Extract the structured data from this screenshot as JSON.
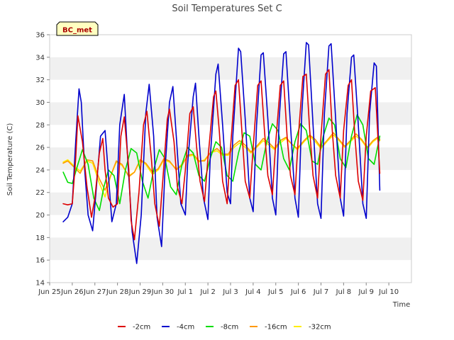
{
  "chart_data": {
    "type": "line",
    "title": "Soil Temperatures Set C",
    "xlabel": "Time",
    "ylabel": "Soil Temperature (C)",
    "station_label": "BC_met",
    "xlim": [
      0,
      16
    ],
    "ylim": [
      14,
      36
    ],
    "yticks": [
      14,
      16,
      18,
      20,
      22,
      24,
      26,
      28,
      30,
      32,
      34,
      36
    ],
    "xticks": [
      {
        "x": 0,
        "label": "Jun 25"
      },
      {
        "x": 1,
        "label": "Jun 26"
      },
      {
        "x": 2,
        "label": "Jun 27"
      },
      {
        "x": 3,
        "label": "Jun 28"
      },
      {
        "x": 4,
        "label": "Jun 29"
      },
      {
        "x": 5,
        "label": "Jun 30"
      },
      {
        "x": 6,
        "label": "Jul 1"
      },
      {
        "x": 7,
        "label": "Jul 2"
      },
      {
        "x": 8,
        "label": "Jul 3"
      },
      {
        "x": 9,
        "label": "Jul 4"
      },
      {
        "x": 10,
        "label": "Jul 5"
      },
      {
        "x": 11,
        "label": "Jul 6"
      },
      {
        "x": 12,
        "label": "Jul 7"
      },
      {
        "x": 13,
        "label": "Jul 8"
      },
      {
        "x": 14,
        "label": "Jul 9"
      },
      {
        "x": 15,
        "label": "Jul 10"
      }
    ],
    "x_units": "days since Jun 24 00:00",
    "grid": "horizontal bands",
    "legend_position": "bottom",
    "series": [
      {
        "name": "-2cm",
        "color": "#dd0000",
        "x": [
          0.6,
          0.8,
          1.0,
          1.15,
          1.25,
          1.45,
          1.65,
          1.85,
          2.0,
          2.2,
          2.35,
          2.45,
          2.6,
          2.8,
          3.0,
          3.15,
          3.3,
          3.5,
          3.6,
          3.75,
          3.95,
          4.15,
          4.3,
          4.5,
          4.65,
          4.85,
          5.0,
          5.2,
          5.3,
          5.5,
          5.65,
          5.85,
          6.0,
          6.2,
          6.35,
          6.5,
          6.65,
          6.85,
          7.0,
          7.25,
          7.35,
          7.5,
          7.65,
          7.85,
          8.0,
          8.2,
          8.35,
          8.5,
          8.65,
          8.85,
          9.0,
          9.2,
          9.35,
          9.5,
          9.65,
          9.85,
          10.0,
          10.2,
          10.35,
          10.5,
          10.65,
          10.85,
          11.0,
          11.2,
          11.35,
          11.5,
          11.65,
          11.85,
          12.0,
          12.2,
          12.35,
          12.5,
          12.65,
          12.85,
          13.0,
          13.2,
          13.35,
          13.5,
          13.65,
          13.85,
          14.0,
          14.2,
          14.4,
          14.6
        ],
        "y": [
          21.0,
          20.9,
          21.0,
          25.0,
          28.8,
          26.5,
          22.5,
          19.8,
          21.5,
          25.5,
          26.8,
          24.0,
          21.5,
          20.7,
          21.0,
          27.0,
          28.7,
          24.0,
          19.5,
          17.8,
          22.0,
          28.0,
          29.2,
          25.0,
          21.0,
          19.0,
          23.0,
          28.5,
          29.4,
          26.5,
          22.5,
          21.0,
          24.0,
          29.0,
          29.6,
          26.0,
          23.0,
          21.2,
          25.0,
          30.5,
          31.0,
          27.5,
          23.0,
          21.0,
          26.0,
          31.5,
          32.0,
          27.5,
          23.0,
          21.5,
          26.0,
          31.5,
          31.9,
          27.5,
          23.5,
          21.8,
          26.5,
          31.5,
          31.9,
          27.0,
          23.5,
          21.8,
          27.0,
          32.3,
          32.5,
          27.5,
          23.5,
          21.5,
          27.0,
          32.5,
          32.9,
          27.5,
          23.5,
          21.5,
          27.5,
          31.5,
          32.0,
          27.0,
          23.0,
          21.3,
          27.0,
          31.0,
          31.3,
          23.7
        ]
      },
      {
        "name": "-4cm",
        "color": "#0000cc",
        "x": [
          0.6,
          0.8,
          1.0,
          1.15,
          1.3,
          1.4,
          1.55,
          1.7,
          1.9,
          2.05,
          2.25,
          2.45,
          2.6,
          2.75,
          2.95,
          3.1,
          3.3,
          3.45,
          3.65,
          3.85,
          4.05,
          4.25,
          4.4,
          4.6,
          4.75,
          4.95,
          5.1,
          5.3,
          5.45,
          5.6,
          5.8,
          6.0,
          6.1,
          6.35,
          6.45,
          6.6,
          6.8,
          7.0,
          7.1,
          7.35,
          7.45,
          7.65,
          7.85,
          8.0,
          8.1,
          8.35,
          8.45,
          8.65,
          8.85,
          9.0,
          9.15,
          9.35,
          9.45,
          9.65,
          9.85,
          10.0,
          10.15,
          10.35,
          10.45,
          10.65,
          10.85,
          11.0,
          11.15,
          11.35,
          11.45,
          11.65,
          11.85,
          12.0,
          12.15,
          12.35,
          12.45,
          12.65,
          12.85,
          13.0,
          13.15,
          13.35,
          13.45,
          13.65,
          13.85,
          14.0,
          14.15,
          14.35,
          14.45,
          14.6
        ],
        "y": [
          19.4,
          19.8,
          21.0,
          26.5,
          31.2,
          30.0,
          24.0,
          20.0,
          18.6,
          22.0,
          27.0,
          27.5,
          23.5,
          19.4,
          21.0,
          28.0,
          30.7,
          25.0,
          18.5,
          15.7,
          20.0,
          29.0,
          31.6,
          27.0,
          19.8,
          17.2,
          24.0,
          30.0,
          31.4,
          27.0,
          21.0,
          20.0,
          24.5,
          30.5,
          31.7,
          27.0,
          21.5,
          19.6,
          25.0,
          32.5,
          33.4,
          28.0,
          22.0,
          21.0,
          27.0,
          34.8,
          34.5,
          28.5,
          21.5,
          20.3,
          28.0,
          34.2,
          34.4,
          28.5,
          21.5,
          20.0,
          28.5,
          34.3,
          34.5,
          28.0,
          21.5,
          19.8,
          29.0,
          35.3,
          35.1,
          28.0,
          21.0,
          19.7,
          29.0,
          35.0,
          35.2,
          28.5,
          21.5,
          19.9,
          29.0,
          34.0,
          34.2,
          28.0,
          21.0,
          19.7,
          29.0,
          33.5,
          33.2,
          22.2
        ]
      },
      {
        "name": "-8cm",
        "color": "#00dd00",
        "x": [
          0.6,
          0.8,
          1.0,
          1.25,
          1.45,
          1.7,
          1.95,
          2.2,
          2.4,
          2.6,
          2.85,
          3.1,
          3.35,
          3.6,
          3.85,
          4.1,
          4.35,
          4.6,
          4.85,
          5.1,
          5.35,
          5.6,
          5.85,
          6.1,
          6.35,
          6.6,
          6.85,
          7.1,
          7.35,
          7.6,
          7.85,
          8.1,
          8.35,
          8.6,
          8.85,
          9.1,
          9.35,
          9.6,
          9.85,
          10.1,
          10.35,
          10.6,
          10.85,
          11.1,
          11.35,
          11.6,
          11.85,
          12.1,
          12.35,
          12.6,
          12.85,
          13.1,
          13.35,
          13.6,
          13.85,
          14.1,
          14.35,
          14.6
        ],
        "y": [
          23.8,
          22.9,
          22.8,
          24.5,
          25.8,
          24.5,
          21.5,
          20.4,
          22.5,
          24.0,
          23.5,
          21.0,
          24.0,
          25.9,
          25.5,
          23.0,
          21.5,
          24.0,
          25.8,
          25.0,
          22.5,
          21.8,
          24.5,
          26.0,
          25.5,
          23.5,
          23.0,
          25.0,
          26.5,
          26.0,
          23.5,
          23.0,
          25.5,
          27.3,
          27.0,
          24.5,
          24.0,
          26.5,
          28.1,
          27.5,
          25.0,
          24.0,
          26.5,
          28.1,
          27.5,
          24.8,
          24.5,
          27.0,
          28.6,
          28.0,
          25.0,
          24.2,
          27.0,
          28.9,
          28.0,
          25.0,
          24.5,
          27.0
        ]
      },
      {
        "name": "-16cm",
        "color": "#ff9900",
        "x": [
          0.6,
          0.8,
          1.05,
          1.35,
          1.65,
          1.9,
          2.2,
          2.45,
          2.7,
          2.95,
          3.2,
          3.5,
          3.75,
          4.0,
          4.25,
          4.55,
          4.8,
          5.05,
          5.3,
          5.6,
          5.85,
          6.1,
          6.35,
          6.6,
          6.85,
          7.1,
          7.4,
          7.65,
          7.9,
          8.15,
          8.4,
          8.65,
          8.9,
          9.2,
          9.45,
          9.7,
          9.95,
          10.2,
          10.45,
          10.7,
          10.95,
          11.25,
          11.5,
          11.75,
          12.0,
          12.3,
          12.55,
          12.8,
          13.05,
          13.3,
          13.55,
          13.8,
          14.05,
          14.3,
          14.5,
          14.6
        ],
        "y": [
          24.6,
          24.8,
          24.3,
          23.7,
          24.9,
          24.8,
          23.2,
          22.2,
          23.5,
          24.8,
          24.5,
          23.4,
          23.8,
          24.9,
          24.6,
          23.8,
          24.1,
          25.0,
          24.8,
          24.0,
          24.4,
          25.3,
          25.4,
          24.8,
          24.8,
          25.5,
          25.9,
          25.4,
          25.4,
          26.2,
          26.6,
          26.2,
          25.6,
          26.2,
          26.8,
          26.4,
          25.9,
          26.6,
          26.9,
          26.3,
          25.9,
          26.6,
          27.1,
          26.7,
          26.0,
          26.7,
          27.3,
          26.7,
          26.1,
          26.6,
          27.2,
          26.7,
          26.0,
          26.6,
          26.9,
          26.7
        ]
      },
      {
        "name": "-32cm",
        "color": "#ffee00",
        "x": [
          0.6,
          0.8,
          1.05,
          1.35,
          1.65,
          1.9,
          2.2,
          2.45,
          2.7,
          2.95,
          3.2,
          3.5,
          3.75,
          4.0,
          4.25,
          4.55,
          4.8,
          5.05,
          5.3,
          5.6,
          5.85,
          6.1,
          6.35,
          6.6,
          6.85,
          7.1,
          7.4,
          7.65,
          7.9,
          8.15,
          8.4,
          8.65,
          8.9,
          9.2,
          9.45,
          9.7,
          9.95,
          10.2,
          10.45,
          10.7,
          10.95,
          11.25,
          11.5,
          11.75,
          12.0,
          12.3,
          12.55,
          12.8,
          13.05,
          13.3,
          13.55,
          13.8,
          14.05,
          14.3,
          14.5,
          14.6
        ],
        "y": [
          24.7,
          24.9,
          24.4,
          23.9,
          24.8,
          24.6,
          22.8,
          21.6,
          23.5,
          24.7,
          24.4,
          23.5,
          23.8,
          24.8,
          24.5,
          23.6,
          24.0,
          24.9,
          24.7,
          24.1,
          24.5,
          25.2,
          25.3,
          24.7,
          24.9,
          25.5,
          25.7,
          25.3,
          25.3,
          26.0,
          26.4,
          26.0,
          25.5,
          26.1,
          26.6,
          26.2,
          25.8,
          26.4,
          26.8,
          26.3,
          25.8,
          26.5,
          27.0,
          26.5,
          25.9,
          26.6,
          27.1,
          26.6,
          26.0,
          26.5,
          27.0,
          26.6,
          25.9,
          26.5,
          26.8,
          26.6
        ]
      }
    ]
  }
}
